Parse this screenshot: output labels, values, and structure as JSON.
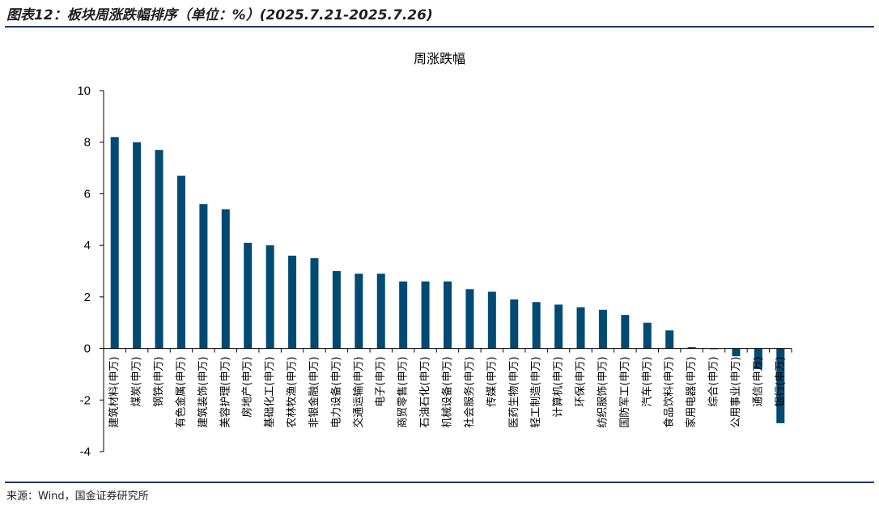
{
  "figure_title": "图表12：板块周涨跌幅排序（单位：%）(2025.7.21-2025.7.26)",
  "source": "来源：Wind，国金证券研究所",
  "colors": {
    "bar": "#004A74",
    "rule": "#1f3864"
  },
  "chart_data": {
    "type": "bar",
    "title": "周涨跌幅",
    "xlabel": "",
    "ylabel": "",
    "ylim": [
      -4,
      10
    ],
    "yticks": [
      -4,
      -2,
      0,
      2,
      4,
      6,
      8,
      10
    ],
    "grid": false,
    "legend": "none",
    "categories": [
      "建筑材料(申万)",
      "煤炭(申万)",
      "钢铁(申万)",
      "有色金属(申万)",
      "建筑装饰(申万)",
      "美容护理(申万)",
      "房地产(申万)",
      "基础化工(申万)",
      "农林牧渔(申万)",
      "非银金融(申万)",
      "电力设备(申万)",
      "交通运输(申万)",
      "电子(申万)",
      "商贸零售(申万)",
      "石油石化(申万)",
      "机械设备(申万)",
      "社会服务(申万)",
      "传媒(申万)",
      "医药生物(申万)",
      "轻工制造(申万)",
      "计算机(申万)",
      "环保(申万)",
      "纺织服饰(申万)",
      "国防军工(申万)",
      "汽车(申万)",
      "食品饮料(申万)",
      "家用电器(申万)",
      "综合(申万)",
      "公用事业(申万)",
      "通信(申万)",
      "银行(申万)"
    ],
    "values": [
      8.2,
      8.0,
      7.7,
      6.7,
      5.6,
      5.4,
      4.1,
      4.0,
      3.6,
      3.5,
      3.0,
      2.9,
      2.9,
      2.6,
      2.6,
      2.6,
      2.3,
      2.2,
      1.9,
      1.8,
      1.7,
      1.6,
      1.5,
      1.3,
      1.0,
      0.7,
      0.05,
      -0.03,
      -0.3,
      -0.8,
      -2.9
    ]
  }
}
